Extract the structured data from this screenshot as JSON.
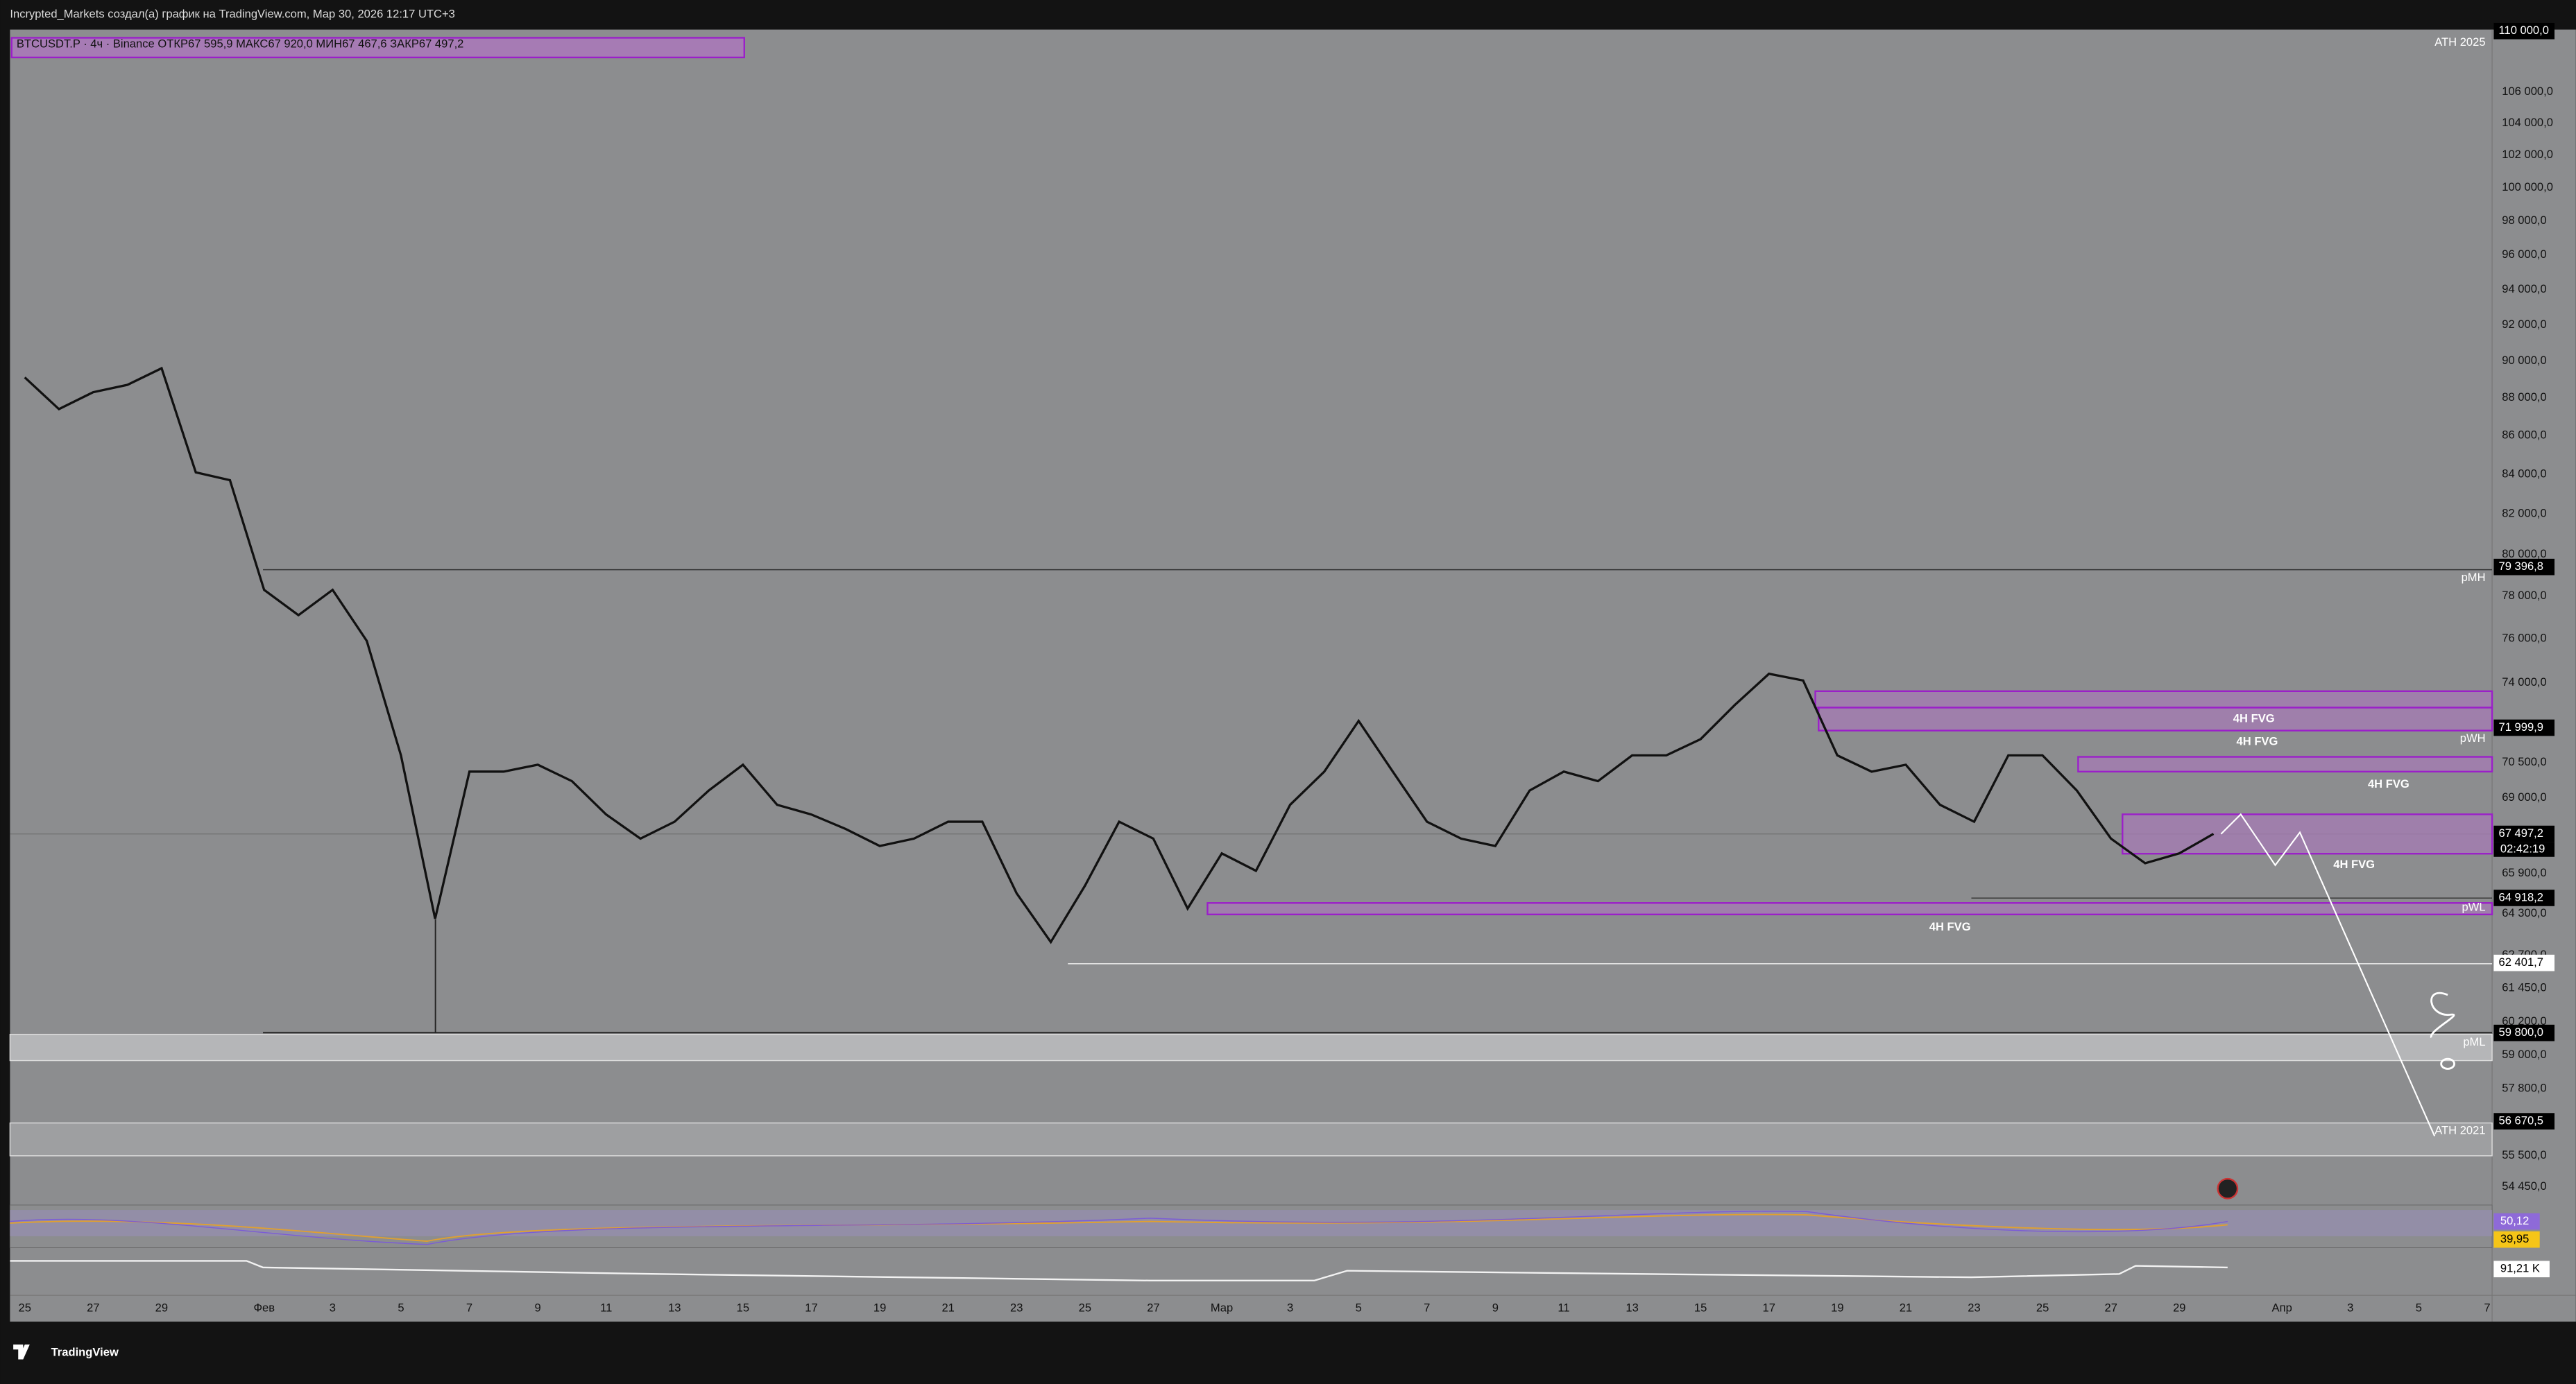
{
  "header": {
    "title": "Incrypted_Markets создал(а) график на TradingView.com, Мар 30, 2026 12:17 UTC+3"
  },
  "legend": {
    "text": "BTCUSDT.P · 4ч · Binance  ОТКР67 595,9  МАКС67 920,0  МИН67 467,6  ЗАКР67 497,2"
  },
  "price_axis": {
    "scale": "log",
    "ylim": [
      54070,
      110100
    ],
    "ticks": [
      {
        "value": 106000,
        "label": "106 000,0"
      },
      {
        "value": 104000,
        "label": "104 000,0"
      },
      {
        "value": 102000,
        "label": "102 000,0"
      },
      {
        "value": 100000,
        "label": "100 000,0"
      },
      {
        "value": 98000,
        "label": "98 000,0"
      },
      {
        "value": 96000,
        "label": "96 000,0"
      },
      {
        "value": 94000,
        "label": "94 000,0"
      },
      {
        "value": 92000,
        "label": "92 000,0"
      },
      {
        "value": 90000,
        "label": "90 000,0"
      },
      {
        "value": 88000,
        "label": "88 000,0"
      },
      {
        "value": 86000,
        "label": "86 000,0"
      },
      {
        "value": 84000,
        "label": "84 000,0"
      },
      {
        "value": 82000,
        "label": "82 000,0"
      },
      {
        "value": 80000,
        "label": "80 000,0"
      },
      {
        "value": 78000,
        "label": "78 000,0"
      },
      {
        "value": 76000,
        "label": "76 000,0"
      },
      {
        "value": 74000,
        "label": "74 000,0"
      },
      {
        "value": 70500,
        "label": "70 500,0"
      },
      {
        "value": 69000,
        "label": "69 000,0"
      },
      {
        "value": 65900,
        "label": "65 900,0"
      },
      {
        "value": 64300,
        "label": "64 300,0"
      },
      {
        "value": 62700,
        "label": "62 700,0"
      },
      {
        "value": 61450,
        "label": "61 450,0"
      },
      {
        "value": 60200,
        "label": "60 200,0"
      },
      {
        "value": 59000,
        "label": "59 000,0"
      },
      {
        "value": 57800,
        "label": "57 800,0"
      },
      {
        "value": 55500,
        "label": "55 500,0"
      },
      {
        "value": 54450,
        "label": "54 450,0"
      }
    ],
    "markers": [
      {
        "value": 110000,
        "label": "110 000,0",
        "color": "#000000"
      },
      {
        "value": 79396.8,
        "label": "79 396,8",
        "color": "#000000"
      },
      {
        "value": 71999.9,
        "label": "71 999,9",
        "color": "#000000"
      },
      {
        "value": 67497.2,
        "label": "67 497,2",
        "color": "#000000"
      },
      {
        "value": 64918.2,
        "label": "64 918,2",
        "color": "#000000"
      },
      {
        "value": 62401.7,
        "label": "62 401,7",
        "color": "#ffffff"
      },
      {
        "value": 59800,
        "label": "59 800,0",
        "color": "#000000"
      },
      {
        "value": 56670.5,
        "label": "56 670,5",
        "color": "#000000"
      }
    ],
    "countdown": "02:42:19"
  },
  "time_axis": {
    "xlim": [
      "2026-01-25",
      "2026-04-07"
    ],
    "ticks": [
      {
        "value": "2026-01-25",
        "label": "25"
      },
      {
        "value": "2026-01-27",
        "label": "27"
      },
      {
        "value": "2026-01-29",
        "label": "29"
      },
      {
        "value": "2026-02-01",
        "label": "Фев"
      },
      {
        "value": "2026-02-03",
        "label": "3"
      },
      {
        "value": "2026-02-05",
        "label": "5"
      },
      {
        "value": "2026-02-07",
        "label": "7"
      },
      {
        "value": "2026-02-09",
        "label": "9"
      },
      {
        "value": "2026-02-11",
        "label": "11"
      },
      {
        "value": "2026-02-13",
        "label": "13"
      },
      {
        "value": "2026-02-15",
        "label": "15"
      },
      {
        "value": "2026-02-17",
        "label": "17"
      },
      {
        "value": "2026-02-19",
        "label": "19"
      },
      {
        "value": "2026-02-21",
        "label": "21"
      },
      {
        "value": "2026-02-23",
        "label": "23"
      },
      {
        "value": "2026-02-25",
        "label": "25"
      },
      {
        "value": "2026-02-27",
        "label": "27"
      },
      {
        "value": "2026-03-01",
        "label": "Мар"
      },
      {
        "value": "2026-03-03",
        "label": "3"
      },
      {
        "value": "2026-03-05",
        "label": "5"
      },
      {
        "value": "2026-03-07",
        "label": "7"
      },
      {
        "value": "2026-03-09",
        "label": "9"
      },
      {
        "value": "2026-03-11",
        "label": "11"
      },
      {
        "value": "2026-03-13",
        "label": "13"
      },
      {
        "value": "2026-03-15",
        "label": "15"
      },
      {
        "value": "2026-03-17",
        "label": "17"
      },
      {
        "value": "2026-03-19",
        "label": "19"
      },
      {
        "value": "2026-03-21",
        "label": "21"
      },
      {
        "value": "2026-03-23",
        "label": "23"
      },
      {
        "value": "2026-03-25",
        "label": "25"
      },
      {
        "value": "2026-03-27",
        "label": "27"
      },
      {
        "value": "2026-03-29",
        "label": "29"
      },
      {
        "value": "2026-04-01",
        "label": "Апр"
      },
      {
        "value": "2026-04-03",
        "label": "3"
      },
      {
        "value": "2026-04-05",
        "label": "5"
      },
      {
        "value": "2026-04-07",
        "label": "7"
      }
    ]
  },
  "price_series": {
    "color": "#111111",
    "x": [
      "2026-01-25",
      "2026-01-26",
      "2026-01-27",
      "2026-01-28",
      "2026-01-29",
      "2026-01-30",
      "2026-01-31",
      "2026-02-01",
      "2026-02-02",
      "2026-02-03",
      "2026-02-04",
      "2026-02-05",
      "2026-02-06",
      "2026-02-07",
      "2026-02-08",
      "2026-02-09",
      "2026-02-10",
      "2026-02-11",
      "2026-02-12",
      "2026-02-13",
      "2026-02-14",
      "2026-02-15",
      "2026-02-16",
      "2026-02-17",
      "2026-02-18",
      "2026-02-19",
      "2026-02-20",
      "2026-02-21",
      "2026-02-22",
      "2026-02-23",
      "2026-02-24",
      "2026-02-25",
      "2026-02-26",
      "2026-02-27",
      "2026-02-28",
      "2026-03-01",
      "2026-03-02",
      "2026-03-03",
      "2026-03-04",
      "2026-03-05",
      "2026-03-06",
      "2026-03-07",
      "2026-03-08",
      "2026-03-09",
      "2026-03-10",
      "2026-03-11",
      "2026-03-12",
      "2026-03-13",
      "2026-03-14",
      "2026-03-15",
      "2026-03-16",
      "2026-03-17",
      "2026-03-18",
      "2026-03-19",
      "2026-03-20",
      "2026-03-21",
      "2026-03-22",
      "2026-03-23",
      "2026-03-24",
      "2026-03-25",
      "2026-03-26",
      "2026-03-27",
      "2026-03-28",
      "2026-03-29",
      "2026-03-30"
    ],
    "close": [
      89100,
      87400,
      88300,
      88700,
      89600,
      84100,
      83700,
      78300,
      77100,
      78300,
      75900,
      70800,
      64100,
      70100,
      70100,
      70400,
      69700,
      68300,
      67300,
      68000,
      69300,
      70400,
      68700,
      68300,
      67700,
      67000,
      67300,
      68000,
      68000,
      65100,
      63200,
      65400,
      68000,
      67300,
      64500,
      66700,
      66000,
      68700,
      70100,
      72300,
      70100,
      68000,
      67300,
      67000,
      69300,
      70100,
      69700,
      70800,
      70800,
      71500,
      73000,
      74400,
      74100,
      70800,
      70100,
      70400,
      68700,
      68000,
      70800,
      70800,
      69300,
      67300,
      66300,
      66700,
      67497.2
    ]
  },
  "annotations": {
    "ath_2025": "ATH 2025",
    "pmh": "pMH",
    "pwh": "pWH",
    "pwl": "pWL",
    "pml": "pML",
    "ath_2021": "ATH 2021",
    "fvg": [
      "4H FVG",
      "4H FVG",
      "4H FVG",
      "4H FVG",
      "4H FVG"
    ]
  },
  "indicators": {
    "rsi": "50,12",
    "rsi_ma": "39,95",
    "volume": "91,21 K"
  },
  "footer": {
    "brand": "TradingView"
  }
}
